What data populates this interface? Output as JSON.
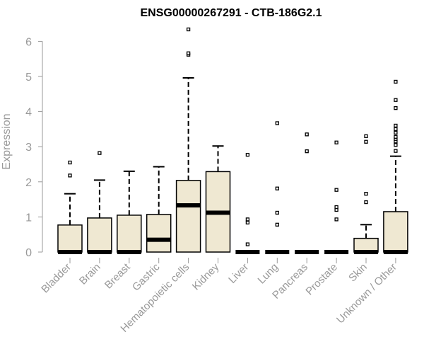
{
  "chart_data": {
    "type": "box",
    "title": "ENSG00000267291 - CTB-186G2.1",
    "xlabel": "",
    "ylabel": "Expression",
    "ylim": [
      0,
      6.3
    ],
    "yticks": [
      "0",
      "1",
      "2",
      "3",
      "4",
      "5",
      "6"
    ],
    "grid": false,
    "colors": {
      "box_fill": "#efe8d2",
      "stroke": "#000000",
      "axis": "#999999"
    },
    "categories": [
      "Bladder",
      "Brain",
      "Breast",
      "Gastric",
      "Hematopoietic cells",
      "Kidney",
      "Liver",
      "Lung",
      "Pancreas",
      "Prostate",
      "Skin",
      "Unknown / Other"
    ],
    "boxes": [
      {
        "category": "Bladder",
        "whisker_low": 0,
        "q1": 0,
        "median": 0,
        "q3": 0.77,
        "whisker_high": 1.66,
        "outliers": [
          2.18,
          2.55
        ]
      },
      {
        "category": "Brain",
        "whisker_low": 0,
        "q1": 0,
        "median": 0,
        "q3": 0.97,
        "whisker_high": 2.05,
        "outliers": [
          2.82
        ]
      },
      {
        "category": "Breast",
        "whisker_low": 0,
        "q1": 0,
        "median": 0,
        "q3": 1.05,
        "whisker_high": 2.3,
        "outliers": []
      },
      {
        "category": "Gastric",
        "whisker_low": 0,
        "q1": 0,
        "median": 0.35,
        "q3": 1.07,
        "whisker_high": 2.43,
        "outliers": []
      },
      {
        "category": "Hematopoietic cells",
        "whisker_low": 0,
        "q1": 0,
        "median": 1.33,
        "q3": 2.04,
        "whisker_high": 4.96,
        "outliers": [
          5.62,
          5.66,
          6.34
        ]
      },
      {
        "category": "Kidney",
        "whisker_low": 0,
        "q1": 0,
        "median": 1.12,
        "q3": 2.29,
        "whisker_high": 3.02,
        "outliers": []
      },
      {
        "category": "Liver",
        "whisker_low": 0,
        "q1": 0,
        "median": 0,
        "q3": 0,
        "whisker_high": 0,
        "outliers": [
          0.22,
          0.84,
          0.93,
          2.77
        ]
      },
      {
        "category": "Lung",
        "whisker_low": 0,
        "q1": 0,
        "median": 0,
        "q3": 0,
        "whisker_high": 0,
        "outliers": [
          0.78,
          1.12,
          1.81,
          3.67
        ]
      },
      {
        "category": "Pancreas",
        "whisker_low": 0,
        "q1": 0,
        "median": 0,
        "q3": 0,
        "whisker_high": 0,
        "outliers": [
          2.87,
          3.35
        ]
      },
      {
        "category": "Prostate",
        "whisker_low": 0,
        "q1": 0,
        "median": 0,
        "q3": 0,
        "whisker_high": 0,
        "outliers": [
          0.93,
          1.2,
          1.28,
          1.77,
          3.12
        ]
      },
      {
        "category": "Skin",
        "whisker_low": 0,
        "q1": 0,
        "median": 0,
        "q3": 0.39,
        "whisker_high": 0.78,
        "outliers": [
          1.42,
          1.66,
          3.14,
          3.3
        ]
      },
      {
        "category": "Unknown / Other",
        "whisker_low": 0,
        "q1": 0,
        "median": 0,
        "q3": 1.15,
        "whisker_high": 2.73,
        "outliers": [
          2.88,
          3.05,
          3.15,
          3.22,
          3.28,
          3.4,
          3.5,
          3.6,
          4.1,
          4.33,
          4.85
        ]
      }
    ]
  }
}
